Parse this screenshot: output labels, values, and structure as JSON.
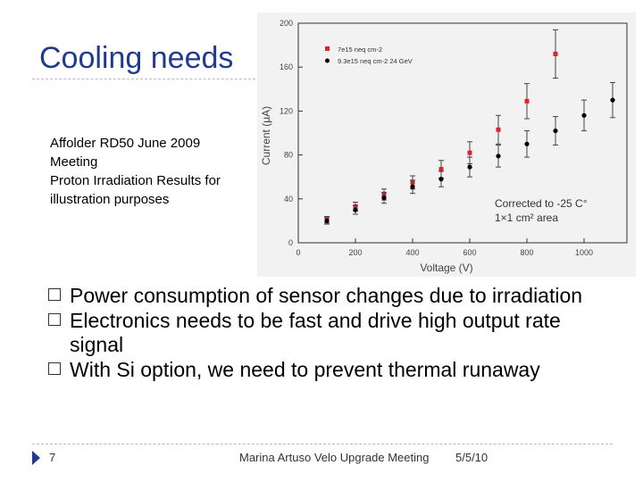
{
  "slide": {
    "title": "Cooling needs",
    "caption": [
      "Affolder RD50 June 2009",
      "Meeting",
      "Proton Irradiation Results for",
      "illustration purposes"
    ],
    "bullets": [
      "Power consumption of sensor changes due to irradiation",
      "Electronics needs to be fast and drive high output rate signal",
      "With Si option, we need to prevent thermal runaway"
    ],
    "footer": {
      "page_number": "7",
      "text": "Marina Artuso Velo Upgrade Meeting",
      "date": "5/5/10"
    },
    "colors": {
      "title": "#1f3a8f",
      "series_red": "#e0202a",
      "series_black": "#000000"
    }
  },
  "chart_data": {
    "type": "scatter",
    "xlabel": "Voltage (V)",
    "ylabel": "Current (μA)",
    "xlim": [
      0,
      1150
    ],
    "ylim": [
      0,
      200
    ],
    "xticks": [
      0,
      200,
      400,
      600,
      800,
      1000
    ],
    "yticks": [
      0,
      40,
      80,
      120,
      160,
      200
    ],
    "legend_position": "top-left",
    "annotation": [
      "Corrected to -25 C°",
      "1×1 cm² area"
    ],
    "series": [
      {
        "name": "7e15 neq cm-2",
        "marker": "square",
        "color": "#e0202a",
        "points": [
          {
            "x": 100,
            "y": 21,
            "err": 3
          },
          {
            "x": 200,
            "y": 33,
            "err": 4
          },
          {
            "x": 300,
            "y": 44,
            "err": 5
          },
          {
            "x": 400,
            "y": 55,
            "err": 6
          },
          {
            "x": 500,
            "y": 67,
            "err": 8
          },
          {
            "x": 600,
            "y": 82,
            "err": 10
          },
          {
            "x": 700,
            "y": 103,
            "err": 13
          },
          {
            "x": 800,
            "y": 129,
            "err": 16
          },
          {
            "x": 900,
            "y": 172,
            "err": 22
          }
        ]
      },
      {
        "name": "9.3e15 neq cm-2 24 GeV",
        "marker": "circle",
        "color": "#000000",
        "points": [
          {
            "x": 100,
            "y": 20,
            "err": 3
          },
          {
            "x": 200,
            "y": 30,
            "err": 4
          },
          {
            "x": 300,
            "y": 41,
            "err": 5
          },
          {
            "x": 400,
            "y": 51,
            "err": 6
          },
          {
            "x": 500,
            "y": 58,
            "err": 7
          },
          {
            "x": 600,
            "y": 69,
            "err": 9
          },
          {
            "x": 700,
            "y": 79,
            "err": 10
          },
          {
            "x": 800,
            "y": 90,
            "err": 12
          },
          {
            "x": 900,
            "y": 102,
            "err": 13
          },
          {
            "x": 1000,
            "y": 116,
            "err": 14
          },
          {
            "x": 1100,
            "y": 130,
            "err": 16
          }
        ]
      }
    ]
  }
}
